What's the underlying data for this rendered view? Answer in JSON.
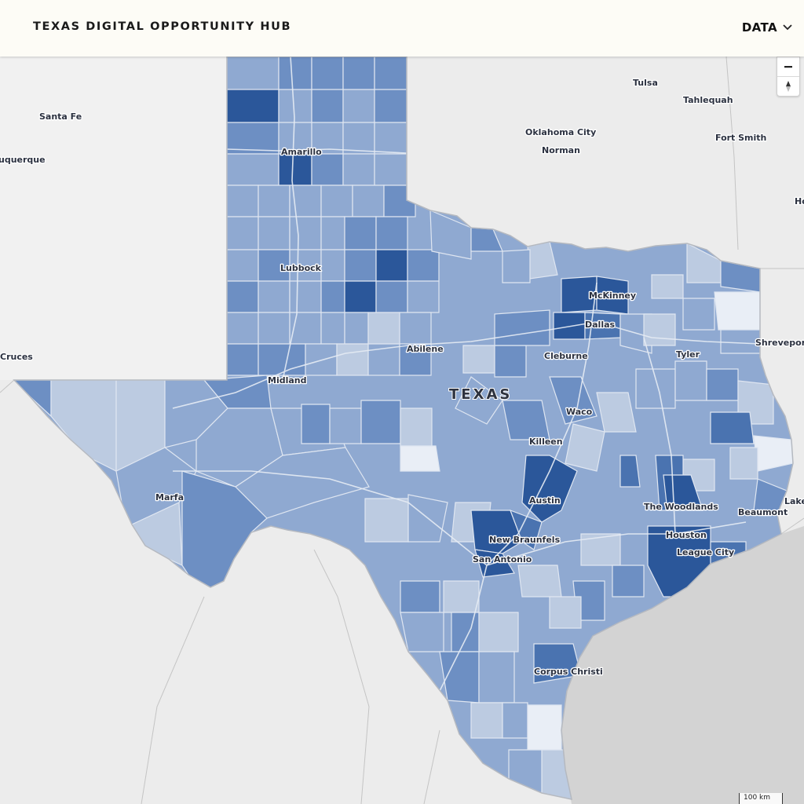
{
  "header": {
    "title": "TEXAS DIGITAL OPPORTUNITY HUB",
    "menu_label": "DATA",
    "menu_icon": "chevron-down-icon"
  },
  "map": {
    "state_label": "TEXAS",
    "scale_label": "100 km",
    "colors": {
      "background": "#ececec",
      "water": "#d2d2d2",
      "header_bg": "#fdfcf6",
      "choropleth": [
        "#e9eef6",
        "#bccbe1",
        "#8fa9d1",
        "#6d8fc3",
        "#4a73b0",
        "#2b579a"
      ]
    },
    "cities_in_texas": [
      {
        "name": "Amarillo"
      },
      {
        "name": "Lubbock"
      },
      {
        "name": "Abilene"
      },
      {
        "name": "Midland"
      },
      {
        "name": "McKinney"
      },
      {
        "name": "Dallas"
      },
      {
        "name": "Cleburne"
      },
      {
        "name": "Tyler"
      },
      {
        "name": "Waco"
      },
      {
        "name": "Killeen"
      },
      {
        "name": "Austin"
      },
      {
        "name": "New Braunfels"
      },
      {
        "name": "San Antonio"
      },
      {
        "name": "The Woodlands"
      },
      {
        "name": "Houston"
      },
      {
        "name": "League City"
      },
      {
        "name": "Beaumont"
      },
      {
        "name": "Corpus Christi"
      },
      {
        "name": "Marfa"
      }
    ],
    "cities_outside": [
      {
        "name": "Tulsa"
      },
      {
        "name": "Tahlequah"
      },
      {
        "name": "Oklahoma City"
      },
      {
        "name": "Norman"
      },
      {
        "name": "Fort Smith"
      },
      {
        "name": "Santa Fe"
      },
      {
        "name": "uquerque"
      },
      {
        "name": "Cruces"
      },
      {
        "name": "Shreveport"
      },
      {
        "name": "Lake"
      },
      {
        "name": "Ho"
      }
    ]
  }
}
